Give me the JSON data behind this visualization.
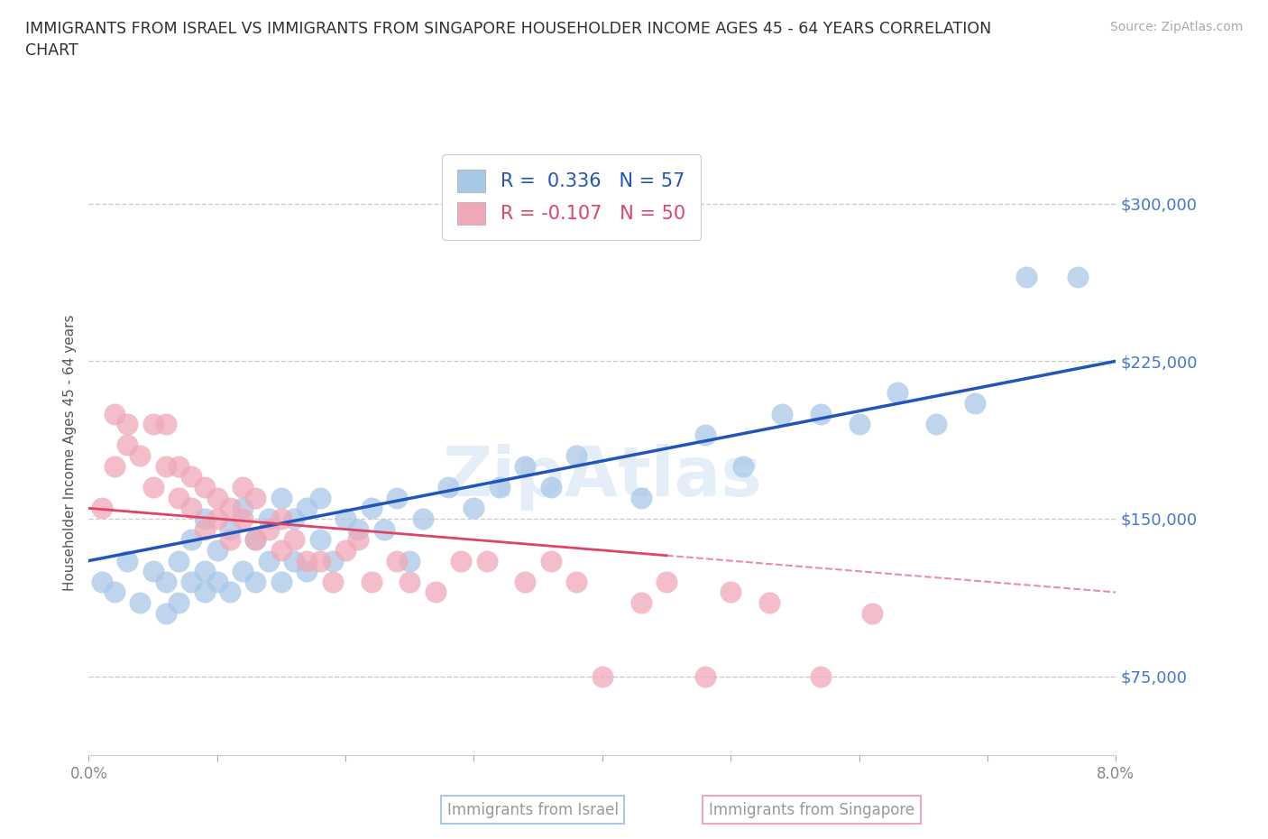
{
  "title": "IMMIGRANTS FROM ISRAEL VS IMMIGRANTS FROM SINGAPORE HOUSEHOLDER INCOME AGES 45 - 64 YEARS CORRELATION\nCHART",
  "ylabel": "Householder Income Ages 45 - 64 years",
  "source_text": "Source: ZipAtlas.com",
  "legend_label_1": "Immigrants from Israel",
  "legend_label_2": "Immigrants from Singapore",
  "r1": 0.336,
  "n1": 57,
  "r2": -0.107,
  "n2": 50,
  "color_israel": "#a8c8e8",
  "color_singapore": "#f0a8b8",
  "line_color_israel": "#2255bb",
  "line_color_singapore": "#dd4466",
  "xlim": [
    0.0,
    0.08
  ],
  "ylim": [
    37500,
    325000
  ],
  "yticks": [
    75000,
    150000,
    225000,
    300000
  ],
  "ytick_labels": [
    "$75,000",
    "$150,000",
    "$225,000",
    "$300,000"
  ],
  "xticks": [
    0.0,
    0.01,
    0.02,
    0.03,
    0.04,
    0.05,
    0.06,
    0.07,
    0.08
  ],
  "xtick_labels": [
    "0.0%",
    "",
    "",
    "",
    "",
    "",
    "",
    "",
    "8.0%"
  ],
  "title_color": "#303030",
  "axis_tick_color": "#4477cc",
  "israel_line_y0": 130000,
  "israel_line_y1": 225000,
  "singapore_line_y0": 155000,
  "singapore_line_y1": 115000,
  "israel_x": [
    0.001,
    0.002,
    0.003,
    0.004,
    0.005,
    0.006,
    0.006,
    0.007,
    0.007,
    0.008,
    0.008,
    0.009,
    0.009,
    0.009,
    0.01,
    0.01,
    0.011,
    0.011,
    0.012,
    0.012,
    0.013,
    0.013,
    0.014,
    0.014,
    0.015,
    0.015,
    0.016,
    0.016,
    0.017,
    0.017,
    0.018,
    0.018,
    0.019,
    0.02,
    0.021,
    0.022,
    0.023,
    0.024,
    0.025,
    0.026,
    0.028,
    0.03,
    0.032,
    0.034,
    0.036,
    0.038,
    0.043,
    0.048,
    0.051,
    0.054,
    0.057,
    0.06,
    0.063,
    0.066,
    0.069,
    0.073,
    0.077
  ],
  "israel_y": [
    120000,
    115000,
    130000,
    110000,
    125000,
    120000,
    105000,
    110000,
    130000,
    120000,
    140000,
    115000,
    125000,
    150000,
    120000,
    135000,
    115000,
    145000,
    125000,
    155000,
    120000,
    140000,
    130000,
    150000,
    120000,
    160000,
    130000,
    150000,
    125000,
    155000,
    140000,
    160000,
    130000,
    150000,
    145000,
    155000,
    145000,
    160000,
    130000,
    150000,
    165000,
    155000,
    165000,
    175000,
    165000,
    180000,
    160000,
    190000,
    175000,
    200000,
    200000,
    195000,
    210000,
    195000,
    205000,
    265000,
    265000
  ],
  "singapore_x": [
    0.001,
    0.002,
    0.002,
    0.003,
    0.003,
    0.004,
    0.005,
    0.005,
    0.006,
    0.006,
    0.007,
    0.007,
    0.008,
    0.008,
    0.009,
    0.009,
    0.01,
    0.01,
    0.011,
    0.011,
    0.012,
    0.012,
    0.013,
    0.013,
    0.014,
    0.015,
    0.015,
    0.016,
    0.017,
    0.018,
    0.019,
    0.02,
    0.021,
    0.022,
    0.024,
    0.025,
    0.027,
    0.029,
    0.031,
    0.034,
    0.036,
    0.038,
    0.04,
    0.043,
    0.045,
    0.048,
    0.05,
    0.053,
    0.057,
    0.061
  ],
  "singapore_y": [
    155000,
    200000,
    175000,
    185000,
    195000,
    180000,
    195000,
    165000,
    175000,
    195000,
    160000,
    175000,
    155000,
    170000,
    145000,
    165000,
    150000,
    160000,
    140000,
    155000,
    150000,
    165000,
    140000,
    160000,
    145000,
    150000,
    135000,
    140000,
    130000,
    130000,
    120000,
    135000,
    140000,
    120000,
    130000,
    120000,
    115000,
    130000,
    130000,
    120000,
    130000,
    120000,
    75000,
    110000,
    120000,
    75000,
    115000,
    110000,
    75000,
    105000
  ]
}
